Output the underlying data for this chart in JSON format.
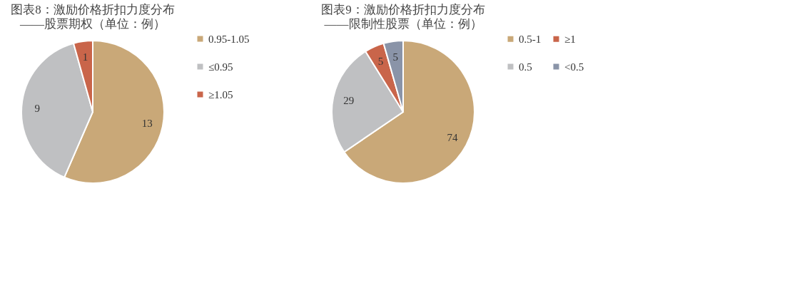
{
  "chart_data": [
    {
      "type": "pie",
      "title": "图表8：激励价格折扣力度分布",
      "subtitle": "——股票期权（单位：例）",
      "categories": [
        "0.95-1.05",
        "≤0.95",
        "≥1.05"
      ],
      "values": [
        13,
        9,
        1
      ],
      "colors": [
        "#c9a878",
        "#bfc0c2",
        "#c9654a"
      ],
      "data_labels": true,
      "legend": "right"
    },
    {
      "type": "pie",
      "title": "图表9：激励价格折扣力度分布",
      "subtitle": "——限制性股票（单位：例）",
      "categories": [
        "0.5-1",
        "0.5",
        "≥1",
        "<0.5"
      ],
      "values": [
        74,
        29,
        5,
        5
      ],
      "colors": [
        "#c9a878",
        "#bfc0c2",
        "#c9654a",
        "#8a94a8"
      ],
      "data_labels": true,
      "legend": "right"
    }
  ]
}
